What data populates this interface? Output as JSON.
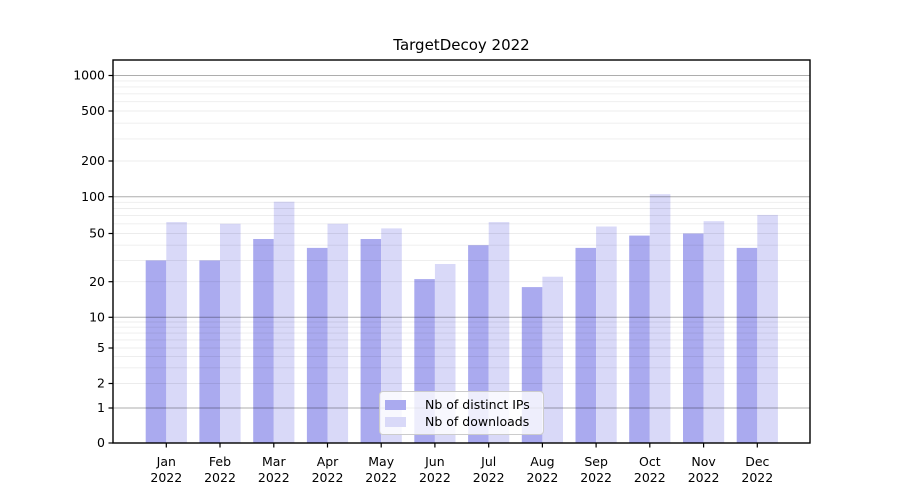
{
  "chart_data": {
    "type": "bar",
    "title": "TargetDecoy 2022",
    "categories": [
      "Jan 2022",
      "Feb 2022",
      "Mar 2022",
      "Apr 2022",
      "May 2022",
      "Jun 2022",
      "Jul 2022",
      "Aug 2022",
      "Sep 2022",
      "Oct 2022",
      "Nov 2022",
      "Dec 2022"
    ],
    "series": [
      {
        "name": "Nb of distinct IPs",
        "color": "#aaaaef",
        "values": [
          30,
          30,
          45,
          38,
          45,
          21,
          40,
          18,
          38,
          48,
          50,
          38
        ]
      },
      {
        "name": "Nb of downloads",
        "color": "#d9d9f8",
        "values": [
          62,
          60,
          91,
          60,
          55,
          28,
          62,
          22,
          57,
          105,
          63,
          71
        ]
      }
    ],
    "yscale": "symlog",
    "y_tick_labels": [
      0,
      1,
      2,
      5,
      10,
      20,
      50,
      100,
      200,
      500,
      1000
    ],
    "ylim": [
      0,
      1300
    ],
    "grid": "horizontal major and minor gridlines",
    "legend_position": "lower center"
  },
  "colors": {
    "major_grid": "rgba(0,0,0,0.32)",
    "minor_grid": "rgba(0,0,0,0.075)",
    "spine": "#000000",
    "text": "#000000",
    "background": "#ffffff"
  }
}
